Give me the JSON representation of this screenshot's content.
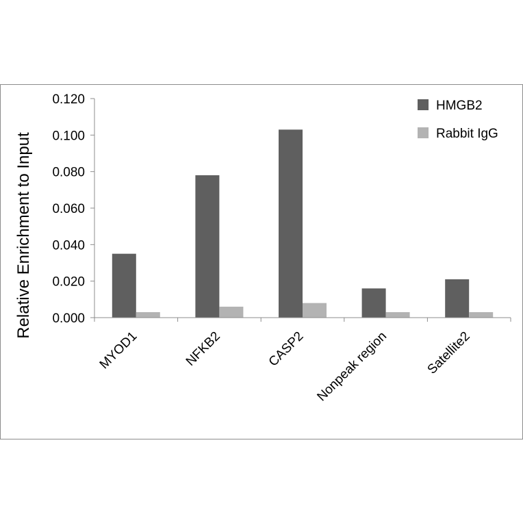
{
  "chart_data": {
    "type": "bar",
    "title": "",
    "xlabel": "",
    "ylabel": "Relative Enrichment to Input",
    "categories": [
      "MYOD1",
      "NFKB2",
      "CASP2",
      "Nonpeak region",
      "Satellite2"
    ],
    "series": [
      {
        "name": "HMGB2",
        "color": "#5f5f5f",
        "values": [
          0.035,
          0.078,
          0.103,
          0.016,
          0.021
        ]
      },
      {
        "name": "Rabbit IgG",
        "color": "#b3b3b3",
        "values": [
          0.003,
          0.006,
          0.008,
          0.003,
          0.003
        ]
      }
    ],
    "ylim": [
      0,
      0.12
    ],
    "yticks": [
      "0.000",
      "0.020",
      "0.040",
      "0.060",
      "0.080",
      "0.100",
      "0.120"
    ],
    "grid": false,
    "legend_position": "top-right"
  }
}
